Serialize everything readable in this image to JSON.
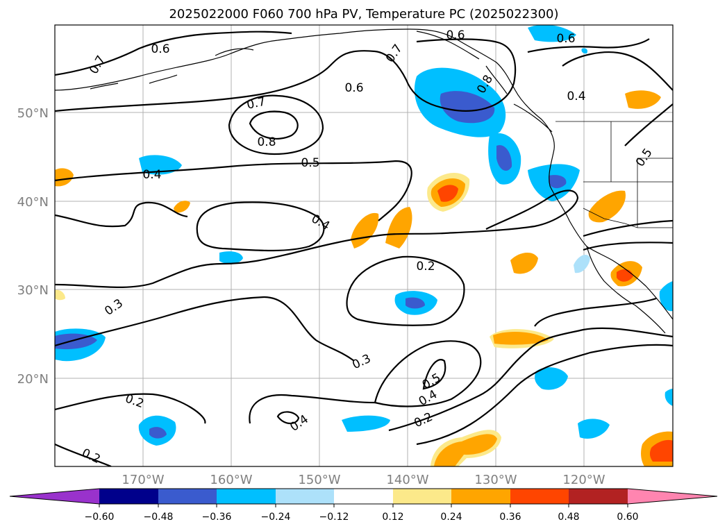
{
  "title": "2025022000 F060 700 hPa PV, Temperature PC (2025022300)",
  "map": {
    "lat_labels": [
      "50°N",
      "40°N",
      "30°N",
      "20°N"
    ],
    "lon_labels": [
      "170°W",
      "160°W",
      "150°W",
      "140°W",
      "130°W",
      "120°W"
    ],
    "contour_labels": [
      "0.6",
      "0.7",
      "0.6",
      "0.7",
      "0.6",
      "0.6",
      "0.4",
      "0.7",
      "0.8",
      "0.5",
      "0.4",
      "0.5",
      "0.4",
      "0.2",
      "0.3",
      "0.3",
      "0.5",
      "0.4",
      "0.4",
      "0.2",
      "0.2",
      "0.2",
      "0.8"
    ]
  },
  "colorbar": {
    "ticks": [
      "−0.60",
      "−0.48",
      "−0.36",
      "−0.24",
      "−0.12",
      "0.12",
      "0.24",
      "0.36",
      "0.48",
      "0.60"
    ],
    "colors": [
      "#9932CC",
      "#00008B",
      "#3A5BCE",
      "#00BFFF",
      "#ADE1FA",
      "#FFFFFF",
      "#FCE98A",
      "#FFA500",
      "#FF4500",
      "#B22222",
      "#FF85B0"
    ]
  }
}
